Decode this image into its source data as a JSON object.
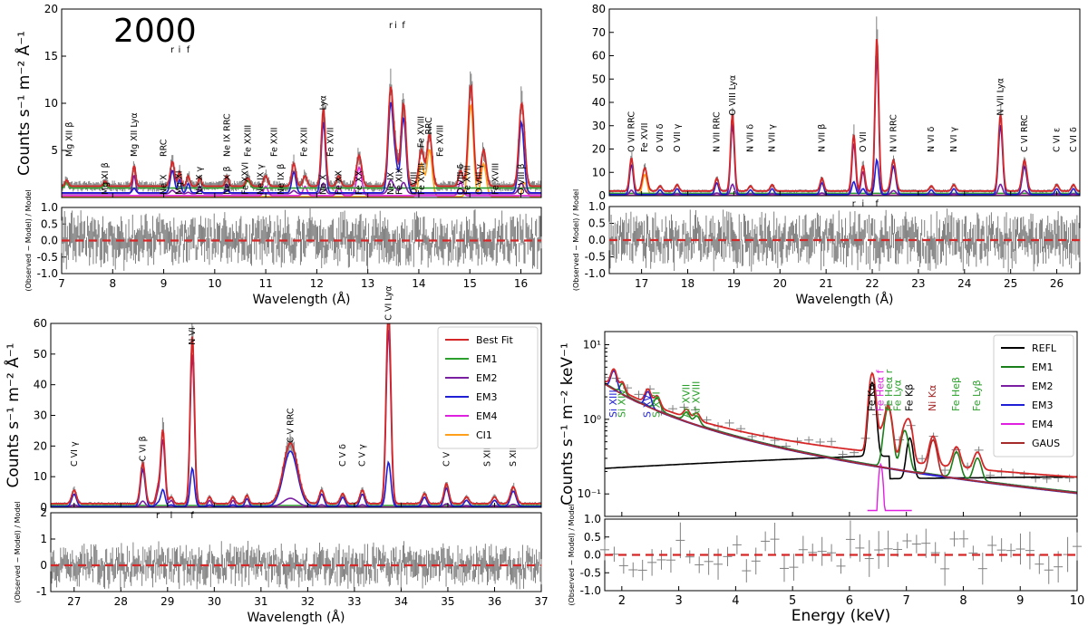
{
  "figure_title": "2000",
  "chart_data": [
    {
      "id": "A",
      "type": "line",
      "xlabel": "Wavelength (Å)",
      "ylabel": "Counts s⁻¹ m⁻² Å⁻¹",
      "resid_ylabel": "(Observed − Model) / Model",
      "xlim": [
        7,
        16.4
      ],
      "ylim": [
        0,
        20
      ],
      "rlim": [
        -1,
        1
      ],
      "xticks": [
        7,
        8,
        9,
        10,
        11,
        12,
        13,
        14,
        15,
        16
      ],
      "yticks": [
        5,
        10,
        15,
        20
      ],
      "rticks": [
        -1.0,
        -0.5,
        0.0,
        0.5,
        1.0
      ],
      "continuum": {
        "EM1": 1.0,
        "total": 1.2
      },
      "lines": [
        {
          "x": 7.1,
          "h": 0.6,
          "w": 0.03,
          "c": "EM1"
        },
        {
          "x": 7.85,
          "h": 0.5,
          "w": 0.03,
          "c": "EM1"
        },
        {
          "x": 8.42,
          "h": 2.0,
          "w": 0.03,
          "c": "EM2"
        },
        {
          "x": 9.17,
          "h": 2.4,
          "w": 0.04,
          "c": "EM3"
        },
        {
          "x": 9.31,
          "h": 1.4,
          "w": 0.03,
          "c": "EM3"
        },
        {
          "x": 9.48,
          "h": 1.0,
          "w": 0.03,
          "c": "EM3"
        },
        {
          "x": 9.71,
          "h": 0.8,
          "w": 0.03,
          "c": "EM2"
        },
        {
          "x": 10.24,
          "h": 1.0,
          "w": 0.03,
          "c": "EM2"
        },
        {
          "x": 10.65,
          "h": 0.8,
          "w": 0.04,
          "c": "EM1"
        },
        {
          "x": 11.0,
          "h": 1.0,
          "w": 0.04,
          "c": "EM4"
        },
        {
          "x": 11.55,
          "h": 2.2,
          "w": 0.04,
          "c": "EM3"
        },
        {
          "x": 11.77,
          "h": 1.0,
          "w": 0.04,
          "c": "EM4"
        },
        {
          "x": 12.13,
          "h": 7.5,
          "w": 0.04,
          "c": "EM3"
        },
        {
          "x": 12.43,
          "h": 1.0,
          "w": 0.04,
          "c": "EM4"
        },
        {
          "x": 12.83,
          "h": 3.0,
          "w": 0.05,
          "c": "EM4"
        },
        {
          "x": 13.45,
          "h": 9.5,
          "w": 0.05,
          "c": "EM3"
        },
        {
          "x": 13.55,
          "h": 2.5,
          "w": 0.04,
          "c": "EM3"
        },
        {
          "x": 13.7,
          "h": 8.0,
          "w": 0.05,
          "c": "EM3"
        },
        {
          "x": 14.05,
          "h": 3.5,
          "w": 0.05,
          "c": "CI1"
        },
        {
          "x": 14.21,
          "h": 5.0,
          "w": 0.05,
          "c": "CI1"
        },
        {
          "x": 14.82,
          "h": 1.5,
          "w": 0.04,
          "c": "EM4"
        },
        {
          "x": 15.02,
          "h": 9.8,
          "w": 0.05,
          "c": "CI1"
        },
        {
          "x": 15.27,
          "h": 3.5,
          "w": 0.05,
          "c": "CI1"
        },
        {
          "x": 16.01,
          "h": 7.5,
          "w": 0.05,
          "c": "EM3"
        },
        {
          "x": 16.07,
          "h": 1.5,
          "w": 0.04,
          "c": "CI1"
        }
      ],
      "labels_top": [
        {
          "x": 7.15,
          "text": "Mg XII β"
        },
        {
          "x": 8.42,
          "text": "Mg XII Lyα"
        },
        {
          "x": 9.0,
          "text": "RRC"
        },
        {
          "x": 10.24,
          "text": "Ne IX RRC"
        },
        {
          "x": 10.65,
          "text": "Fe XXIII"
        },
        {
          "x": 11.17,
          "text": "Fe XXII"
        },
        {
          "x": 11.75,
          "text": "Fe XXII"
        },
        {
          "x": 12.13,
          "text": "Lyα"
        },
        {
          "x": 12.27,
          "text": "Fe XVII"
        },
        {
          "x": 14.05,
          "text": "Fe XVIII"
        },
        {
          "x": 14.2,
          "text": "RRC"
        },
        {
          "x": 14.42,
          "text": "Fe XVIII"
        }
      ],
      "labels_bottom": [
        {
          "x": 7.85,
          "text": "Mg XI β"
        },
        {
          "x": 9.0,
          "text": "Ne X"
        },
        {
          "x": 9.3,
          "text": "Mg XI"
        },
        {
          "x": 9.7,
          "text": "Ne X γ"
        },
        {
          "x": 10.24,
          "text": "Ne X β"
        },
        {
          "x": 10.6,
          "text": "Fe XXVI"
        },
        {
          "x": 10.9,
          "text": "Ne IX γ"
        },
        {
          "x": 11.3,
          "text": "Ne IX β"
        },
        {
          "x": 12.13,
          "text": "Ne X"
        },
        {
          "x": 12.43,
          "text": "Fe XX"
        },
        {
          "x": 12.83,
          "text": "Fe XX"
        },
        {
          "x": 13.45,
          "text": "Ne IX"
        },
        {
          "x": 13.62,
          "text": "Fe XIX"
        },
        {
          "x": 13.9,
          "text": "O VIII"
        },
        {
          "x": 14.05,
          "text": "Fe XVIII"
        },
        {
          "x": 14.82,
          "text": "O VIII δ"
        },
        {
          "x": 14.95,
          "text": "Fe XVII"
        },
        {
          "x": 15.18,
          "text": "O VIII γ"
        },
        {
          "x": 15.5,
          "text": "Fe XVIII"
        },
        {
          "x": 16.01,
          "text": "O VIII β"
        }
      ],
      "triplet": {
        "x": [
          9.17,
          9.31,
          9.48
        ],
        "y": 15.4,
        "text": [
          "r",
          "i",
          "f"
        ]
      },
      "triplet2": {
        "x": [
          13.45,
          13.55,
          13.7
        ],
        "y": 18.0,
        "text": [
          "r",
          "i",
          "f"
        ]
      }
    },
    {
      "id": "B",
      "type": "line",
      "xlabel": "Wavelength (Å)",
      "ylabel": "",
      "resid_ylabel": "(Observed − Model) / Model",
      "xlim": [
        16.3,
        26.5
      ],
      "ylim": [
        0,
        80
      ],
      "rlim": [
        -1,
        1
      ],
      "xticks": [
        17,
        18,
        19,
        20,
        21,
        22,
        23,
        24,
        25,
        26
      ],
      "yticks": [
        0,
        10,
        20,
        30,
        40,
        50,
        60,
        70,
        80
      ],
      "rticks": [
        -1.0,
        -0.5,
        0.0,
        0.5,
        1.0
      ],
      "continuum": {
        "EM1": 1.0,
        "total": 2.0
      },
      "lines": [
        {
          "x": 16.78,
          "h": 13.0,
          "w": 0.04,
          "c": "EM3"
        },
        {
          "x": 17.07,
          "h": 9.0,
          "w": 0.05,
          "c": "CI1"
        },
        {
          "x": 17.4,
          "h": 2.0,
          "w": 0.04,
          "c": "EM3"
        },
        {
          "x": 17.77,
          "h": 2.5,
          "w": 0.04,
          "c": "EM3"
        },
        {
          "x": 18.63,
          "h": 5.0,
          "w": 0.04,
          "c": "EM3"
        },
        {
          "x": 18.97,
          "h": 30.0,
          "w": 0.04,
          "c": "EM3"
        },
        {
          "x": 19.36,
          "h": 2.0,
          "w": 0.04,
          "c": "EM3"
        },
        {
          "x": 19.83,
          "h": 2.5,
          "w": 0.04,
          "c": "EM3"
        },
        {
          "x": 20.91,
          "h": 5.0,
          "w": 0.04,
          "c": "EM3"
        },
        {
          "x": 21.6,
          "h": 22.0,
          "w": 0.04,
          "c": "EM2"
        },
        {
          "x": 21.8,
          "h": 10.0,
          "w": 0.04,
          "c": "EM2"
        },
        {
          "x": 22.1,
          "h": 60.0,
          "w": 0.04,
          "c": "EM2"
        },
        {
          "x": 22.46,
          "h": 12.0,
          "w": 0.05,
          "c": "EM3"
        },
        {
          "x": 23.28,
          "h": 2.0,
          "w": 0.04,
          "c": "EM3"
        },
        {
          "x": 23.77,
          "h": 2.5,
          "w": 0.04,
          "c": "EM3"
        },
        {
          "x": 24.78,
          "h": 30.0,
          "w": 0.045,
          "c": "EM3"
        },
        {
          "x": 25.3,
          "h": 12.0,
          "w": 0.05,
          "c": "EM3"
        },
        {
          "x": 26.0,
          "h": 2.5,
          "w": 0.04,
          "c": "EM3"
        },
        {
          "x": 26.36,
          "h": 2.5,
          "w": 0.04,
          "c": "EM3"
        }
      ],
      "labels_top": [
        {
          "x": 16.78,
          "text": "O VII RRC"
        },
        {
          "x": 17.07,
          "text": "Fe XVII"
        },
        {
          "x": 17.4,
          "text": "O VII δ"
        },
        {
          "x": 17.77,
          "text": "O VII γ"
        },
        {
          "x": 18.63,
          "text": "N VII RRC"
        },
        {
          "x": 18.97,
          "text": "O VIII Lyα"
        },
        {
          "x": 19.36,
          "text": "N VII δ"
        },
        {
          "x": 19.83,
          "text": "N VII γ"
        },
        {
          "x": 20.91,
          "text": "N VII β"
        },
        {
          "x": 21.8,
          "text": "O VII"
        },
        {
          "x": 22.46,
          "text": "N VI RRC"
        },
        {
          "x": 23.28,
          "text": "N VI δ"
        },
        {
          "x": 23.77,
          "text": "N VI γ"
        },
        {
          "x": 24.78,
          "text": "N VII Lyα"
        },
        {
          "x": 25.3,
          "text": "C VI RRC"
        },
        {
          "x": 26.0,
          "text": "C VI ε"
        },
        {
          "x": 26.36,
          "text": "C VI δ"
        }
      ],
      "labels_bottom": [],
      "triplet": {
        "x": [
          21.6,
          21.8,
          22.1
        ],
        "y": -5.5,
        "text": [
          "r",
          "i",
          "f"
        ]
      }
    },
    {
      "id": "C",
      "type": "line",
      "xlabel": "Wavelength (Å)",
      "ylabel": "Counts s⁻¹ m⁻² Å⁻¹",
      "resid_ylabel": "(Observed − Model) / Model",
      "xlim": [
        26.5,
        37
      ],
      "ylim": [
        0,
        60
      ],
      "rlim": [
        -1,
        2
      ],
      "xticks": [
        27,
        28,
        29,
        30,
        31,
        32,
        33,
        34,
        35,
        36,
        37
      ],
      "yticks": [
        0,
        10,
        20,
        30,
        40,
        50,
        60
      ],
      "rticks": [
        -1,
        0,
        1,
        2
      ],
      "continuum": {
        "EM1": 0.6,
        "total": 1.2
      },
      "lines": [
        {
          "x": 27.0,
          "h": 4.0,
          "w": 0.05,
          "c": "EM3"
        },
        {
          "x": 28.47,
          "h": 12.0,
          "w": 0.05,
          "c": "EM3"
        },
        {
          "x": 28.79,
          "h": 4.0,
          "w": 0.04,
          "c": "EM2"
        },
        {
          "x": 28.9,
          "h": 22.0,
          "w": 0.045,
          "c": "EM2"
        },
        {
          "x": 29.08,
          "h": 2.0,
          "w": 0.04,
          "c": "EM2"
        },
        {
          "x": 29.53,
          "h": 50.0,
          "w": 0.045,
          "c": "EM2"
        },
        {
          "x": 29.9,
          "h": 2.0,
          "w": 0.04,
          "c": "EM2"
        },
        {
          "x": 30.4,
          "h": 2.0,
          "w": 0.04,
          "c": "EM2"
        },
        {
          "x": 30.7,
          "h": 2.5,
          "w": 0.04,
          "c": "EM3"
        },
        {
          "x": 31.63,
          "h": 18.0,
          "w": 0.15,
          "c": "EM3"
        },
        {
          "x": 32.3,
          "h": 4.0,
          "w": 0.05,
          "c": "EM3"
        },
        {
          "x": 32.75,
          "h": 3.0,
          "w": 0.05,
          "c": "EM3"
        },
        {
          "x": 33.17,
          "h": 4.0,
          "w": 0.05,
          "c": "EM3"
        },
        {
          "x": 33.73,
          "h": 58.0,
          "w": 0.05,
          "c": "EM2"
        },
        {
          "x": 34.5,
          "h": 3.0,
          "w": 0.05,
          "c": "EM3"
        },
        {
          "x": 34.97,
          "h": 6.0,
          "w": 0.05,
          "c": "EM3"
        },
        {
          "x": 35.4,
          "h": 2.0,
          "w": 0.05,
          "c": "EM3"
        },
        {
          "x": 36.0,
          "h": 2.0,
          "w": 0.05,
          "c": "EM3"
        },
        {
          "x": 36.4,
          "h": 5.0,
          "w": 0.06,
          "c": "EM3"
        }
      ],
      "labels_top": [
        {
          "x": 27.0,
          "text": "C VI γ"
        },
        {
          "x": 28.47,
          "text": "C VI β"
        },
        {
          "x": 29.53,
          "text": "N VI"
        },
        {
          "x": 31.63,
          "text": "C V RRC"
        },
        {
          "x": 32.75,
          "text": "C V δ"
        },
        {
          "x": 33.17,
          "text": "C V γ"
        },
        {
          "x": 33.73,
          "text": "C VI Lyα"
        },
        {
          "x": 34.97,
          "text": "C V β"
        },
        {
          "x": 35.85,
          "text": "S XIII"
        },
        {
          "x": 36.4,
          "text": "S XII"
        }
      ],
      "labels_bottom": [],
      "triplet": {
        "x": [
          28.79,
          29.08,
          29.53
        ],
        "y": -4.2,
        "text": [
          "r",
          "i",
          "f"
        ]
      },
      "legend": [
        {
          "name": "Best Fit",
          "color": "#d62728"
        },
        {
          "name": "EM1",
          "color": "#2ca02c"
        },
        {
          "name": "EM2",
          "color": "#7b1fa2"
        },
        {
          "name": "EM3",
          "color": "#1f1fd6"
        },
        {
          "name": "EM4",
          "color": "#e020e0"
        },
        {
          "name": "CI1",
          "color": "#ff9f1a"
        }
      ]
    },
    {
      "id": "D",
      "type": "line",
      "xscale": "linear",
      "yscale": "log",
      "xlabel": "Energy (keV)",
      "ylabel": "Counts s⁻¹ m⁻² keV⁻¹",
      "resid_ylabel": "(Observed − Model) / Model",
      "xlim": [
        1.7,
        10
      ],
      "ylim": [
        0.05,
        15
      ],
      "rlim": [
        -1,
        1
      ],
      "xticks": [
        2,
        3,
        4,
        5,
        6,
        7,
        8,
        9,
        10
      ],
      "yticks": [
        0.1,
        1,
        10
      ],
      "ytick_labels": [
        "10⁻¹",
        "10⁰",
        "10¹"
      ],
      "rticks": [
        -1.0,
        -0.5,
        0.0,
        0.5,
        1.0
      ],
      "lines": [
        {
          "x": 1.86,
          "h": 2.0,
          "w": 0.05,
          "c": "EM3"
        },
        {
          "x": 2.01,
          "h": 0.8,
          "w": 0.04,
          "c": "EM1"
        },
        {
          "x": 2.46,
          "h": 0.9,
          "w": 0.05,
          "c": "EM3"
        },
        {
          "x": 2.62,
          "h": 0.6,
          "w": 0.05,
          "c": "EM1"
        },
        {
          "x": 3.14,
          "h": 0.3,
          "w": 0.05,
          "c": "EM1"
        },
        {
          "x": 3.32,
          "h": 0.25,
          "w": 0.05,
          "c": "EM1"
        },
        {
          "x": 6.4,
          "h": 2.8,
          "w": 0.05,
          "c": "REFL"
        },
        {
          "x": 6.55,
          "h": 0.25,
          "w": 0.04,
          "c": "EM4"
        },
        {
          "x": 6.68,
          "h": 1.2,
          "w": 0.06,
          "c": "EM1"
        },
        {
          "x": 6.97,
          "h": 0.5,
          "w": 0.06,
          "c": "EM1"
        },
        {
          "x": 7.06,
          "h": 0.4,
          "w": 0.05,
          "c": "REFL"
        },
        {
          "x": 7.47,
          "h": 0.35,
          "w": 0.06,
          "c": "GAUS"
        },
        {
          "x": 7.88,
          "h": 0.2,
          "w": 0.06,
          "c": "EM1"
        },
        {
          "x": 8.25,
          "h": 0.15,
          "w": 0.06,
          "c": "EM1"
        }
      ],
      "labels_top": [
        {
          "x": 1.86,
          "text": "Si XIII",
          "color": "#1f1fd6"
        },
        {
          "x": 2.01,
          "text": "Si XIV",
          "color": "#2ca02c"
        },
        {
          "x": 2.46,
          "text": "S XV",
          "color": "#1f1fd6"
        },
        {
          "x": 2.62,
          "text": "S XVI",
          "color": "#2ca02c"
        },
        {
          "x": 3.14,
          "text": "Ar XVII",
          "color": "#2ca02c"
        },
        {
          "x": 3.32,
          "text": "Ar XVIII",
          "color": "#2ca02c"
        },
        {
          "x": 6.4,
          "text": "Fe Kα",
          "color": "#000000"
        },
        {
          "x": 6.55,
          "text": "Fe Heα f",
          "color": "#e020e0"
        },
        {
          "x": 6.7,
          "text": "Fe Heα r",
          "color": "#2ca02c"
        },
        {
          "x": 6.85,
          "text": "Fe Lyα",
          "color": "#2ca02c"
        },
        {
          "x": 7.06,
          "text": "Fe Kβ",
          "color": "#000000"
        },
        {
          "x": 7.47,
          "text": "Ni Kα",
          "color": "#a52a2a"
        },
        {
          "x": 7.88,
          "text": "Fe Heβ",
          "color": "#2ca02c"
        },
        {
          "x": 8.25,
          "text": "Fe Lyβ",
          "color": "#2ca02c"
        }
      ],
      "legend": [
        {
          "name": "REFL",
          "color": "#000000"
        },
        {
          "name": "EM1",
          "color": "#1a7f1a"
        },
        {
          "name": "EM2",
          "color": "#7b1fa2"
        },
        {
          "name": "EM3",
          "color": "#1f1fd6"
        },
        {
          "name": "EM4",
          "color": "#e020e0"
        },
        {
          "name": "GAUS",
          "color": "#a52a2a"
        }
      ]
    }
  ],
  "colors": {
    "best_fit": "#d62728",
    "EM1": "#2ca02c",
    "EM2": "#7b1fa2",
    "EM3": "#1f1fd6",
    "EM4": "#e020e0",
    "CI1": "#ff9f1a",
    "REFL": "#000000",
    "GAUS": "#a52a2a",
    "data": "#808080"
  }
}
